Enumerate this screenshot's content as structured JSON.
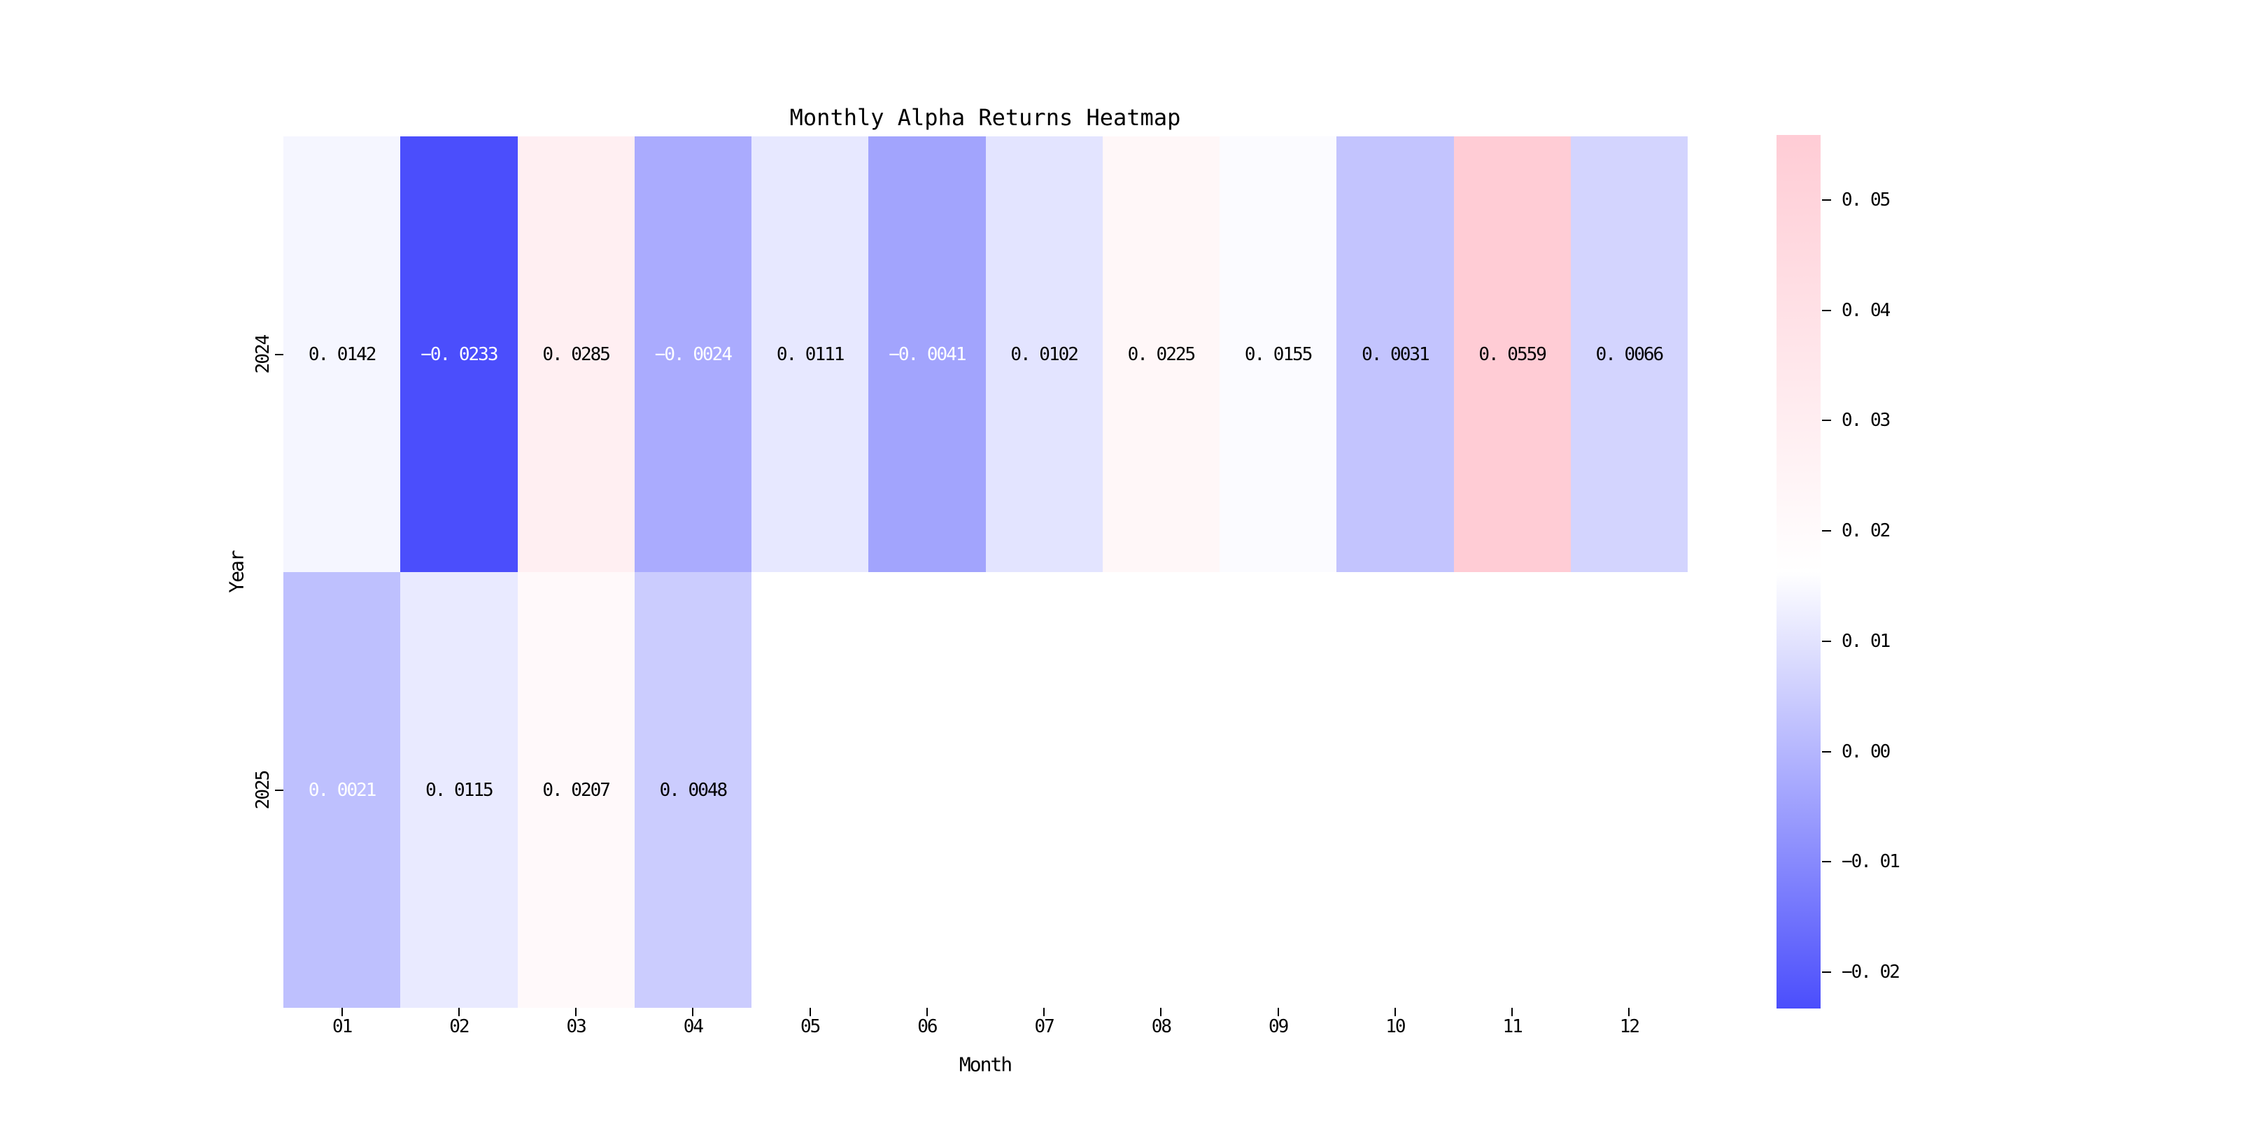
{
  "figure": {
    "background": "#ffffff"
  },
  "chart_data": {
    "type": "heatmap",
    "title": "Monthly Alpha Returns Heatmap",
    "xlabel": "Month",
    "ylabel": "Year",
    "x_categories": [
      "01",
      "02",
      "03",
      "04",
      "05",
      "06",
      "07",
      "08",
      "09",
      "10",
      "11",
      "12"
    ],
    "y_categories": [
      "2024",
      "2025"
    ],
    "series": [
      {
        "name": "2024",
        "values": [
          0.0142,
          -0.0233,
          0.0285,
          -0.0024,
          0.0111,
          -0.0041,
          0.0102,
          0.0225,
          0.0155,
          0.0031,
          0.0559,
          0.0066
        ]
      },
      {
        "name": "2025",
        "values": [
          0.0021,
          0.0115,
          0.0207,
          0.0048,
          null,
          null,
          null,
          null,
          null,
          null,
          null,
          null
        ]
      }
    ],
    "vmin": -0.0233,
    "vmax": 0.0559,
    "value_decimals": 4,
    "colormap": {
      "min_color": "#4b4efc",
      "mid_color": "#ffffff",
      "max_color": "#ffccd5",
      "nan_color": "#ffffff"
    },
    "annotation_text_colors": {
      "dark": "#000000",
      "light": "#ffffff",
      "light_threshold": 0.33
    },
    "colorbar_ticks": [
      0.05,
      0.04,
      0.03,
      0.02,
      0.01,
      0.0,
      -0.01,
      -0.02
    ],
    "colorbar_tick_decimals": 2,
    "grid": false,
    "legend": "colorbar-right"
  }
}
